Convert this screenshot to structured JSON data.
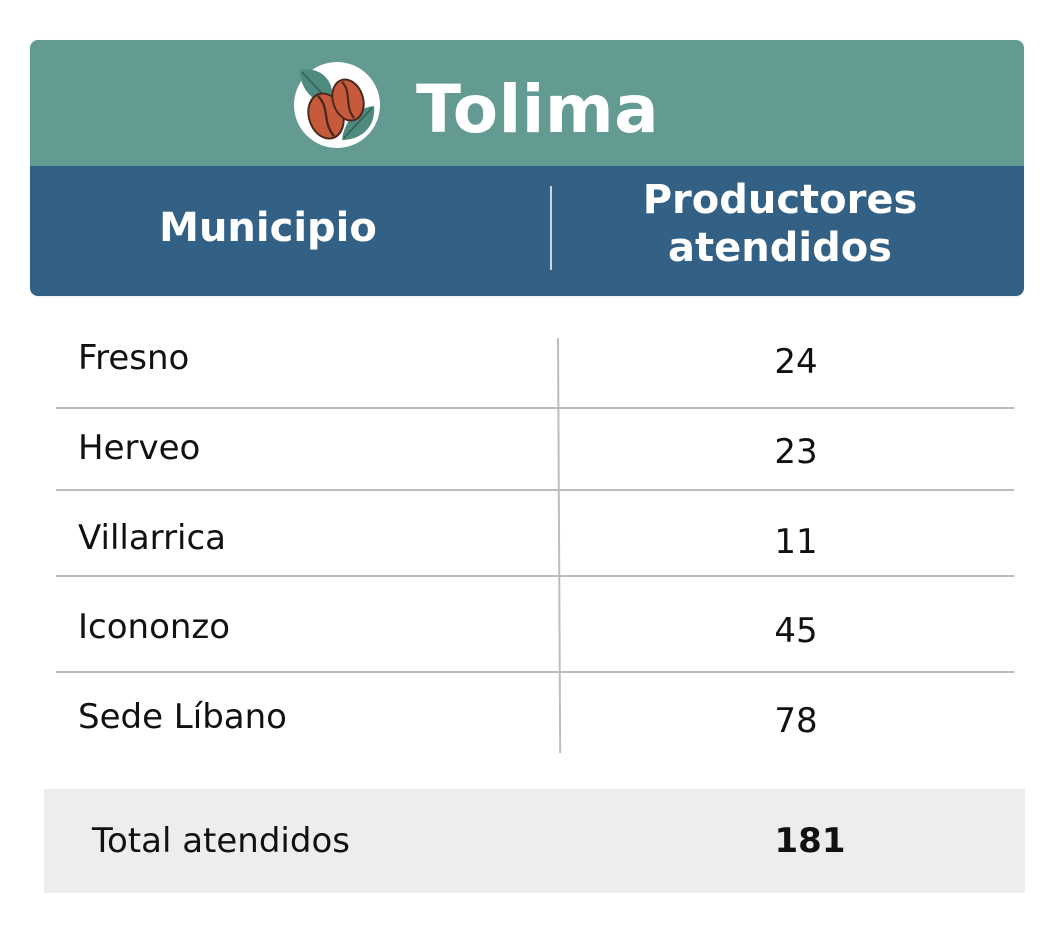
{
  "title": {
    "text": "Tolima",
    "logo_icon": "coffee-beans-leaves-icon"
  },
  "table": {
    "headers": {
      "municipio": "Municipio",
      "productores_line1": "Productores",
      "productores_line2": "atendidos"
    },
    "rows": [
      {
        "municipio": "Fresno",
        "productores": "24"
      },
      {
        "municipio": "Herveo",
        "productores": "23"
      },
      {
        "municipio": "Villarrica",
        "productores": "11"
      },
      {
        "municipio": "Icononzo",
        "productores": "45"
      },
      {
        "municipio": "Sede Líbano",
        "productores": "78"
      }
    ],
    "total": {
      "label": "Total atendidos",
      "value": "181"
    }
  },
  "colors": {
    "title_bar": "#639a92",
    "header_bar": "#336186",
    "bean": "#c85a3c",
    "leaf": "#4f8a7f",
    "total_bar": "#ededed"
  }
}
